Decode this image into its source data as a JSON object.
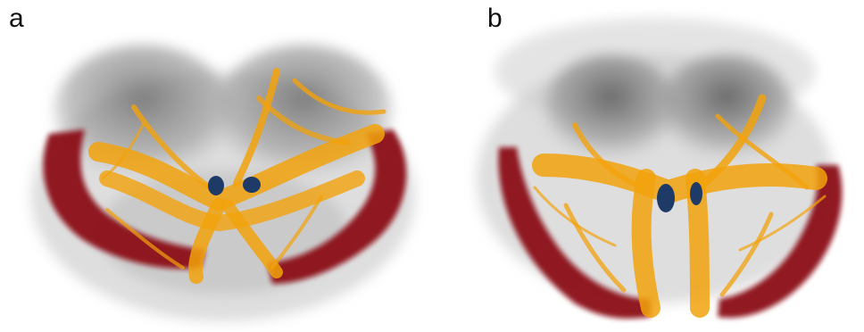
{
  "panels": [
    {
      "label": "a"
    },
    {
      "label": "b"
    }
  ],
  "colors": {
    "background": "#ffffff",
    "brain_gray": "#8a8a8a",
    "red_structure": "#8b1018",
    "fibers": "#f2a20c",
    "blue_nuclei": "#1e3a66"
  }
}
